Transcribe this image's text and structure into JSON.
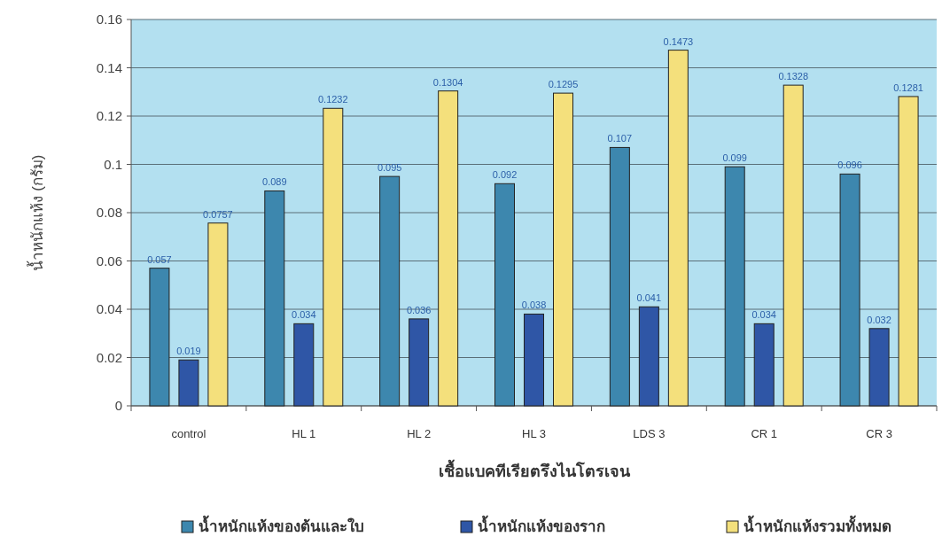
{
  "chart_data": {
    "type": "bar",
    "xlabel": "เชื้อแบคทีเรียตรึงไนโตรเจน",
    "ylabel": "น้ำหนักแห้ง (กรัม)",
    "categories": [
      "control",
      "HL 1",
      "HL 2",
      "HL 3",
      "LDS 3",
      "CR 1",
      "CR 3"
    ],
    "series": [
      {
        "name": "น้ำหนักแห้งของต้นและใบ",
        "color": "#3d87ae",
        "values": [
          0.057,
          0.089,
          0.095,
          0.092,
          0.107,
          0.099,
          0.096
        ]
      },
      {
        "name": "น้ำหนักแห้งของราก",
        "color": "#2f56a6",
        "values": [
          0.019,
          0.034,
          0.036,
          0.038,
          0.041,
          0.034,
          0.032
        ]
      },
      {
        "name": "น้ำหนักแห้งรวมทั้งหมด",
        "color": "#f4e07c",
        "values": [
          0.0757,
          0.1232,
          0.1304,
          0.1295,
          0.1473,
          0.1328,
          0.1281
        ]
      }
    ],
    "ylim": [
      0,
      0.16
    ],
    "yticks": [
      0,
      0.02,
      0.04,
      0.06,
      0.08,
      0.1,
      0.12,
      0.14,
      0.16
    ],
    "grid": "y",
    "legend": "bottom",
    "data_labels": true
  }
}
